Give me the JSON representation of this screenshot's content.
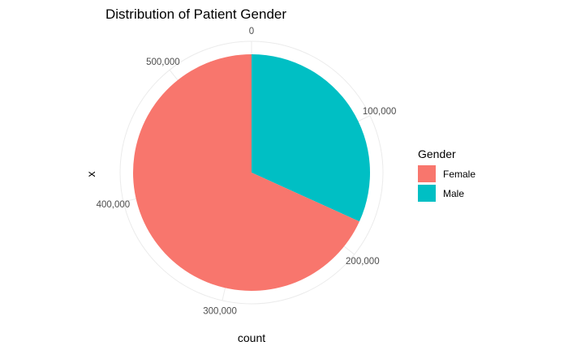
{
  "chart_data": {
    "type": "pie",
    "title": "Distribution of Patient Gender",
    "xlabel": "count",
    "ylabel": "x",
    "total": 560000,
    "axis_ticks": [
      {
        "value": 0,
        "label": "0"
      },
      {
        "value": 100000,
        "label": "100,000"
      },
      {
        "value": 200000,
        "label": "200,000"
      },
      {
        "value": 300000,
        "label": "300,000"
      },
      {
        "value": 400000,
        "label": "400,000"
      },
      {
        "value": 500000,
        "label": "500,000"
      }
    ],
    "legend": {
      "title": "Gender",
      "position": "right"
    },
    "slices": [
      {
        "label": "Male",
        "value": 178000,
        "color": "#00BFC4"
      },
      {
        "label": "Female",
        "value": 382000,
        "color": "#F8766D"
      }
    ],
    "legend_order": [
      "Female",
      "Male"
    ],
    "grid": true
  }
}
